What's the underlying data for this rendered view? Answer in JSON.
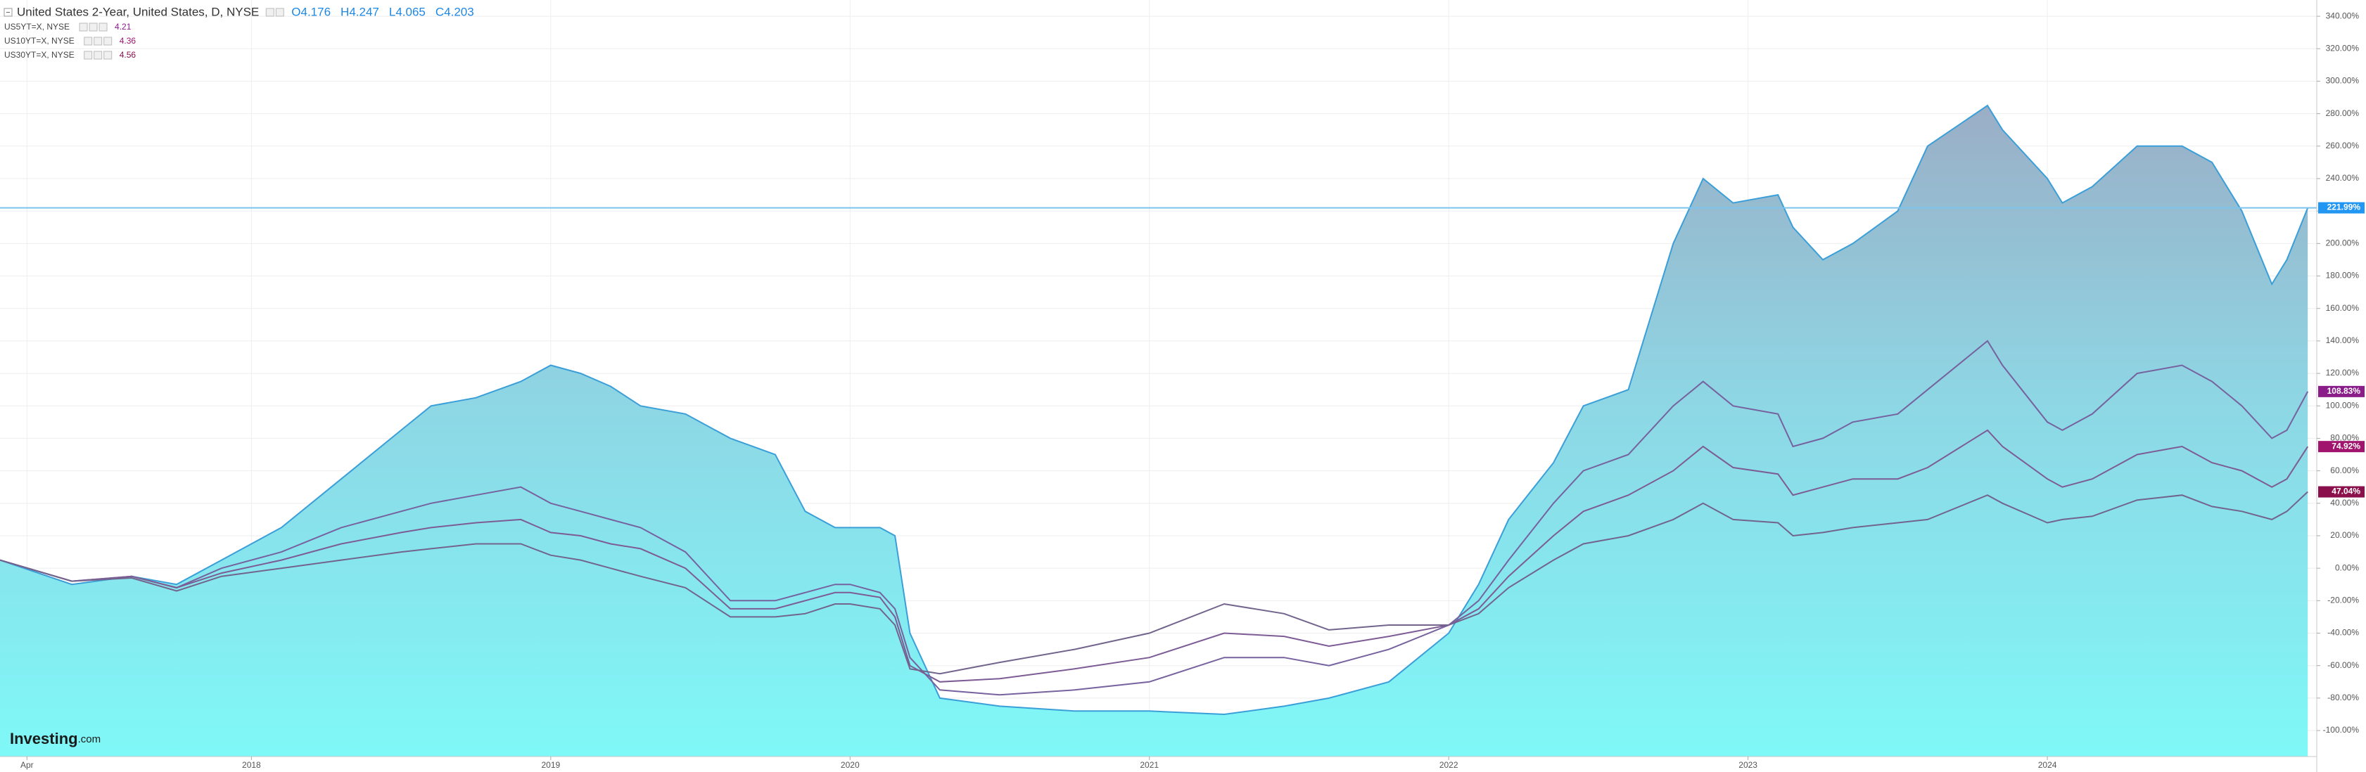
{
  "chart_data": {
    "type": "area",
    "title": "United States 2-Year, United States, D, NYSE",
    "header_values": [
      "O4.176",
      "H4.247",
      "L4.065",
      "C4.203"
    ],
    "logo": "Investing",
    "logo_suffix": ".com",
    "xlim": [
      2017.16,
      2024.9
    ],
    "xticks": [
      {
        "value": 2017.25,
        "label": "Apr"
      },
      2018,
      2019,
      2020,
      2021,
      2022,
      2023,
      2024
    ],
    "ylim": [
      -116,
      350
    ],
    "yticks": [
      {
        "value": -100,
        "label": "-100.00%"
      },
      {
        "value": -80,
        "label": "-80.00%"
      },
      {
        "value": -60,
        "label": "-60.00%"
      },
      {
        "value": -40,
        "label": "-40.00%"
      },
      {
        "value": -20,
        "label": "-20.00%"
      },
      {
        "value": 0,
        "label": "0.00%"
      },
      {
        "value": 20,
        "label": "20.00%"
      },
      {
        "value": 40,
        "label": "40.00%"
      },
      {
        "value": 60,
        "label": "60.00%"
      },
      {
        "value": 80,
        "label": "80.00%"
      },
      {
        "value": 100,
        "label": "100.00%"
      },
      {
        "value": 120,
        "label": "120.00%"
      },
      {
        "value": 140,
        "label": "140.00%"
      },
      {
        "value": 160,
        "label": "160.00%"
      },
      {
        "value": 180,
        "label": "180.00%"
      },
      {
        "value": 200,
        "label": "200.00%"
      },
      {
        "value": 220,
        "label": "220.00%"
      },
      {
        "value": 240,
        "label": "240.00%"
      },
      {
        "value": 260,
        "label": "260.00%"
      },
      {
        "value": 280,
        "label": "280.00%"
      },
      {
        "value": 300,
        "label": "300.00%"
      },
      {
        "value": 320,
        "label": "320.00%"
      },
      {
        "value": 340,
        "label": "340.00%"
      }
    ],
    "grid": true,
    "x": [
      2017.16,
      2017.4,
      2017.6,
      2017.75,
      2017.9,
      2018.1,
      2018.3,
      2018.5,
      2018.6,
      2018.75,
      2018.9,
      2019.0,
      2019.1,
      2019.2,
      2019.3,
      2019.45,
      2019.6,
      2019.75,
      2019.85,
      2019.95,
      2020.0,
      2020.1,
      2020.15,
      2020.2,
      2020.3,
      2020.5,
      2020.75,
      2021.0,
      2021.25,
      2021.45,
      2021.6,
      2021.8,
      2022.0,
      2022.1,
      2022.2,
      2022.35,
      2022.45,
      2022.6,
      2022.75,
      2022.85,
      2022.95,
      2023.1,
      2023.15,
      2023.25,
      2023.35,
      2023.5,
      2023.6,
      2023.8,
      2023.85,
      2024.0,
      2024.05,
      2024.15,
      2024.3,
      2024.45,
      2024.55,
      2024.65,
      2024.75,
      2024.8,
      2024.87
    ],
    "series": [
      {
        "name": "United States 2-Year",
        "kind": "area",
        "color": "#3a9fd8",
        "end_label": "221.99%",
        "label_color": "#2196f3",
        "values": [
          5,
          -10,
          -5,
          -10,
          5,
          25,
          55,
          85,
          100,
          105,
          115,
          125,
          120,
          112,
          100,
          95,
          80,
          70,
          35,
          25,
          25,
          25,
          20,
          -40,
          -80,
          -85,
          -88,
          -88,
          -90,
          -85,
          -80,
          -70,
          -40,
          -10,
          30,
          65,
          100,
          110,
          200,
          240,
          225,
          230,
          210,
          190,
          200,
          220,
          260,
          285,
          270,
          240,
          225,
          235,
          260,
          260,
          250,
          220,
          175,
          190,
          221.99
        ]
      },
      {
        "name": "US5YT=X, NYSE",
        "kind": "line",
        "color": "#76629f",
        "last": 4.21,
        "end_label": "108.83%",
        "label_color": "#8b1d8b",
        "values": [
          5,
          -8,
          -5,
          -12,
          0,
          10,
          25,
          35,
          40,
          45,
          50,
          40,
          35,
          30,
          25,
          10,
          -20,
          -20,
          -15,
          -10,
          -10,
          -15,
          -25,
          -55,
          -75,
          -78,
          -75,
          -70,
          -55,
          -55,
          -60,
          -50,
          -35,
          -20,
          5,
          40,
          60,
          70,
          100,
          115,
          100,
          95,
          75,
          80,
          90,
          95,
          110,
          140,
          125,
          90,
          85,
          95,
          120,
          125,
          115,
          100,
          80,
          85,
          108.83
        ]
      },
      {
        "name": "US10YT=X, NYSE",
        "kind": "line",
        "color": "#7d5c95",
        "last": 4.36,
        "end_label": "74.92%",
        "label_color": "#a0146e",
        "values": [
          5,
          -8,
          -5,
          -12,
          -3,
          5,
          15,
          22,
          25,
          28,
          30,
          22,
          20,
          15,
          12,
          0,
          -25,
          -25,
          -20,
          -15,
          -15,
          -18,
          -30,
          -60,
          -70,
          -68,
          -62,
          -55,
          -40,
          -42,
          -48,
          -42,
          -35,
          -25,
          -5,
          20,
          35,
          45,
          60,
          75,
          62,
          58,
          45,
          50,
          55,
          55,
          62,
          85,
          75,
          55,
          50,
          55,
          70,
          75,
          65,
          60,
          50,
          55,
          74.92
        ]
      },
      {
        "name": "US30YT=X, NYSE",
        "kind": "line",
        "color": "#72648c",
        "last": 4.56,
        "end_label": "47.04%",
        "label_color": "#8b0f4a",
        "values": [
          5,
          -8,
          -6,
          -14,
          -5,
          0,
          5,
          10,
          12,
          15,
          15,
          8,
          5,
          0,
          -5,
          -12,
          -30,
          -30,
          -28,
          -22,
          -22,
          -25,
          -35,
          -62,
          -65,
          -58,
          -50,
          -40,
          -22,
          -28,
          -38,
          -35,
          -35,
          -28,
          -12,
          5,
          15,
          20,
          30,
          40,
          30,
          28,
          20,
          22,
          25,
          28,
          30,
          45,
          40,
          28,
          30,
          32,
          42,
          45,
          38,
          35,
          30,
          35,
          47.04
        ]
      }
    ]
  }
}
